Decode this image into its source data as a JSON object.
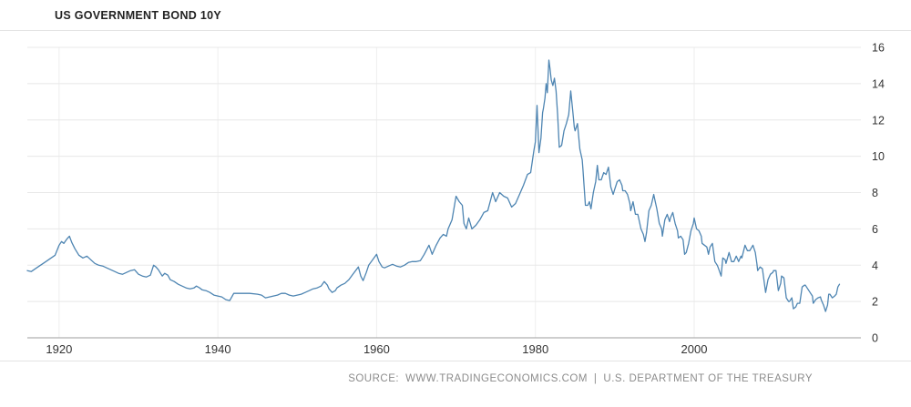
{
  "source": {
    "label": "SOURCE:",
    "site": "WWW.TRADINGECONOMICS.COM",
    "separator": "|",
    "provider": "U.S. DEPARTMENT OF THE TREASURY"
  },
  "chart_data": {
    "type": "line",
    "title": "US GOVERNMENT BOND 10Y",
    "xlabel": "",
    "ylabel": "",
    "xlim": [
      1916,
      2021
    ],
    "ylim": [
      0,
      16
    ],
    "xticks": [
      1920,
      1940,
      1960,
      1980,
      2000
    ],
    "yticks": [
      0,
      2,
      4,
      6,
      8,
      10,
      12,
      14,
      16
    ],
    "grid": true,
    "legend": false,
    "line_color": "#4e85b2",
    "axis_color": "#9e9e9e",
    "grid_color": "#e8e8e8",
    "points": [
      [
        1916.0,
        3.7
      ],
      [
        1916.5,
        3.65
      ],
      [
        1917.0,
        3.8
      ],
      [
        1917.5,
        3.95
      ],
      [
        1918.0,
        4.1
      ],
      [
        1918.5,
        4.25
      ],
      [
        1919.0,
        4.4
      ],
      [
        1919.5,
        4.55
      ],
      [
        1920.0,
        5.1
      ],
      [
        1920.3,
        5.3
      ],
      [
        1920.6,
        5.2
      ],
      [
        1921.0,
        5.45
      ],
      [
        1921.3,
        5.6
      ],
      [
        1921.6,
        5.25
      ],
      [
        1922.0,
        4.9
      ],
      [
        1922.5,
        4.55
      ],
      [
        1923.0,
        4.4
      ],
      [
        1923.5,
        4.5
      ],
      [
        1924.0,
        4.3
      ],
      [
        1924.5,
        4.1
      ],
      [
        1925.0,
        4.0
      ],
      [
        1925.5,
        3.95
      ],
      [
        1926.0,
        3.85
      ],
      [
        1926.5,
        3.75
      ],
      [
        1927.0,
        3.65
      ],
      [
        1927.5,
        3.55
      ],
      [
        1928.0,
        3.5
      ],
      [
        1928.5,
        3.6
      ],
      [
        1929.0,
        3.7
      ],
      [
        1929.5,
        3.75
      ],
      [
        1930.0,
        3.5
      ],
      [
        1930.5,
        3.4
      ],
      [
        1931.0,
        3.35
      ],
      [
        1931.5,
        3.45
      ],
      [
        1931.9,
        4.0
      ],
      [
        1932.2,
        3.9
      ],
      [
        1932.5,
        3.75
      ],
      [
        1933.0,
        3.4
      ],
      [
        1933.3,
        3.55
      ],
      [
        1933.7,
        3.45
      ],
      [
        1934.0,
        3.2
      ],
      [
        1934.5,
        3.1
      ],
      [
        1935.0,
        2.95
      ],
      [
        1935.5,
        2.85
      ],
      [
        1936.0,
        2.75
      ],
      [
        1936.5,
        2.7
      ],
      [
        1937.0,
        2.75
      ],
      [
        1937.3,
        2.85
      ],
      [
        1937.7,
        2.75
      ],
      [
        1938.0,
        2.65
      ],
      [
        1938.5,
        2.6
      ],
      [
        1939.0,
        2.5
      ],
      [
        1939.5,
        2.35
      ],
      [
        1940.0,
        2.3
      ],
      [
        1940.5,
        2.25
      ],
      [
        1941.0,
        2.1
      ],
      [
        1941.5,
        2.05
      ],
      [
        1942.0,
        2.45
      ],
      [
        1943.0,
        2.45
      ],
      [
        1944.0,
        2.45
      ],
      [
        1945.0,
        2.4
      ],
      [
        1945.5,
        2.35
      ],
      [
        1946.0,
        2.2
      ],
      [
        1946.5,
        2.25
      ],
      [
        1947.0,
        2.3
      ],
      [
        1947.5,
        2.35
      ],
      [
        1948.0,
        2.45
      ],
      [
        1948.5,
        2.45
      ],
      [
        1949.0,
        2.35
      ],
      [
        1949.5,
        2.3
      ],
      [
        1950.0,
        2.35
      ],
      [
        1950.5,
        2.4
      ],
      [
        1951.0,
        2.5
      ],
      [
        1951.5,
        2.6
      ],
      [
        1952.0,
        2.7
      ],
      [
        1952.5,
        2.75
      ],
      [
        1953.0,
        2.85
      ],
      [
        1953.4,
        3.1
      ],
      [
        1953.8,
        2.9
      ],
      [
        1954.0,
        2.7
      ],
      [
        1954.4,
        2.5
      ],
      [
        1954.8,
        2.6
      ],
      [
        1955.0,
        2.75
      ],
      [
        1955.5,
        2.9
      ],
      [
        1956.0,
        3.0
      ],
      [
        1956.5,
        3.2
      ],
      [
        1957.0,
        3.5
      ],
      [
        1957.7,
        3.9
      ],
      [
        1958.0,
        3.4
      ],
      [
        1958.3,
        3.15
      ],
      [
        1958.7,
        3.6
      ],
      [
        1959.0,
        4.0
      ],
      [
        1959.5,
        4.3
      ],
      [
        1960.0,
        4.6
      ],
      [
        1960.3,
        4.2
      ],
      [
        1960.7,
        3.9
      ],
      [
        1961.0,
        3.85
      ],
      [
        1961.5,
        3.95
      ],
      [
        1962.0,
        4.05
      ],
      [
        1962.5,
        3.95
      ],
      [
        1963.0,
        3.9
      ],
      [
        1963.5,
        4.0
      ],
      [
        1964.0,
        4.15
      ],
      [
        1964.5,
        4.2
      ],
      [
        1965.0,
        4.2
      ],
      [
        1965.5,
        4.25
      ],
      [
        1966.0,
        4.6
      ],
      [
        1966.6,
        5.1
      ],
      [
        1967.0,
        4.6
      ],
      [
        1967.5,
        5.1
      ],
      [
        1968.0,
        5.5
      ],
      [
        1968.4,
        5.7
      ],
      [
        1968.8,
        5.6
      ],
      [
        1969.0,
        6.0
      ],
      [
        1969.5,
        6.5
      ],
      [
        1970.0,
        7.8
      ],
      [
        1970.4,
        7.5
      ],
      [
        1970.8,
        7.3
      ],
      [
        1971.0,
        6.3
      ],
      [
        1971.3,
        6.0
      ],
      [
        1971.6,
        6.6
      ],
      [
        1972.0,
        6.0
      ],
      [
        1972.5,
        6.2
      ],
      [
        1973.0,
        6.5
      ],
      [
        1973.5,
        6.9
      ],
      [
        1974.0,
        7.0
      ],
      [
        1974.6,
        8.0
      ],
      [
        1975.0,
        7.5
      ],
      [
        1975.5,
        8.0
      ],
      [
        1976.0,
        7.8
      ],
      [
        1976.5,
        7.7
      ],
      [
        1977.0,
        7.2
      ],
      [
        1977.5,
        7.4
      ],
      [
        1978.0,
        7.9
      ],
      [
        1978.5,
        8.4
      ],
      [
        1979.0,
        9.0
      ],
      [
        1979.4,
        9.1
      ],
      [
        1979.8,
        10.3
      ],
      [
        1980.0,
        10.8
      ],
      [
        1980.2,
        12.8
      ],
      [
        1980.45,
        10.2
      ],
      [
        1980.7,
        11.0
      ],
      [
        1980.9,
        12.4
      ],
      [
        1981.0,
        12.6
      ],
      [
        1981.2,
        13.2
      ],
      [
        1981.35,
        14.0
      ],
      [
        1981.5,
        13.5
      ],
      [
        1981.7,
        15.3
      ],
      [
        1981.85,
        14.8
      ],
      [
        1982.0,
        14.2
      ],
      [
        1982.2,
        13.9
      ],
      [
        1982.4,
        14.3
      ],
      [
        1982.6,
        13.6
      ],
      [
        1982.8,
        12.3
      ],
      [
        1983.0,
        10.5
      ],
      [
        1983.3,
        10.6
      ],
      [
        1983.6,
        11.4
      ],
      [
        1983.9,
        11.8
      ],
      [
        1984.2,
        12.3
      ],
      [
        1984.45,
        13.6
      ],
      [
        1984.7,
        12.5
      ],
      [
        1984.9,
        11.6
      ],
      [
        1985.0,
        11.4
      ],
      [
        1985.3,
        11.8
      ],
      [
        1985.6,
        10.4
      ],
      [
        1985.9,
        9.8
      ],
      [
        1986.0,
        9.2
      ],
      [
        1986.3,
        7.3
      ],
      [
        1986.6,
        7.3
      ],
      [
        1986.8,
        7.5
      ],
      [
        1987.0,
        7.1
      ],
      [
        1987.3,
        8.0
      ],
      [
        1987.6,
        8.6
      ],
      [
        1987.8,
        9.5
      ],
      [
        1988.0,
        8.7
      ],
      [
        1988.3,
        8.7
      ],
      [
        1988.6,
        9.1
      ],
      [
        1988.9,
        9.0
      ],
      [
        1989.2,
        9.4
      ],
      [
        1989.5,
        8.3
      ],
      [
        1989.8,
        7.9
      ],
      [
        1990.0,
        8.2
      ],
      [
        1990.3,
        8.6
      ],
      [
        1990.6,
        8.7
      ],
      [
        1990.9,
        8.4
      ],
      [
        1991.0,
        8.1
      ],
      [
        1991.3,
        8.1
      ],
      [
        1991.6,
        7.9
      ],
      [
        1991.9,
        7.4
      ],
      [
        1992.0,
        7.0
      ],
      [
        1992.3,
        7.5
      ],
      [
        1992.6,
        6.8
      ],
      [
        1992.9,
        6.8
      ],
      [
        1993.0,
        6.6
      ],
      [
        1993.3,
        6.0
      ],
      [
        1993.6,
        5.7
      ],
      [
        1993.8,
        5.3
      ],
      [
        1994.0,
        5.8
      ],
      [
        1994.3,
        7.0
      ],
      [
        1994.6,
        7.3
      ],
      [
        1994.9,
        7.9
      ],
      [
        1995.0,
        7.7
      ],
      [
        1995.3,
        7.1
      ],
      [
        1995.6,
        6.3
      ],
      [
        1995.9,
        6.0
      ],
      [
        1996.0,
        5.6
      ],
      [
        1996.3,
        6.5
      ],
      [
        1996.6,
        6.8
      ],
      [
        1996.9,
        6.4
      ],
      [
        1997.0,
        6.6
      ],
      [
        1997.3,
        6.9
      ],
      [
        1997.6,
        6.3
      ],
      [
        1997.9,
        5.9
      ],
      [
        1998.0,
        5.5
      ],
      [
        1998.3,
        5.6
      ],
      [
        1998.6,
        5.4
      ],
      [
        1998.8,
        4.6
      ],
      [
        1999.0,
        4.7
      ],
      [
        1999.3,
        5.2
      ],
      [
        1999.6,
        5.9
      ],
      [
        1999.9,
        6.3
      ],
      [
        2000.0,
        6.6
      ],
      [
        2000.3,
        6.0
      ],
      [
        2000.6,
        5.9
      ],
      [
        2000.9,
        5.6
      ],
      [
        2001.0,
        5.2
      ],
      [
        2001.3,
        5.1
      ],
      [
        2001.6,
        5.0
      ],
      [
        2001.8,
        4.6
      ],
      [
        2002.0,
        5.0
      ],
      [
        2002.3,
        5.2
      ],
      [
        2002.6,
        4.2
      ],
      [
        2002.9,
        4.0
      ],
      [
        2003.0,
        3.9
      ],
      [
        2003.4,
        3.4
      ],
      [
        2003.6,
        4.4
      ],
      [
        2003.9,
        4.3
      ],
      [
        2004.0,
        4.1
      ],
      [
        2004.4,
        4.7
      ],
      [
        2004.7,
        4.2
      ],
      [
        2005.0,
        4.2
      ],
      [
        2005.3,
        4.5
      ],
      [
        2005.6,
        4.2
      ],
      [
        2005.9,
        4.5
      ],
      [
        2006.0,
        4.4
      ],
      [
        2006.4,
        5.1
      ],
      [
        2006.7,
        4.8
      ],
      [
        2007.0,
        4.8
      ],
      [
        2007.4,
        5.1
      ],
      [
        2007.7,
        4.7
      ],
      [
        2007.9,
        4.1
      ],
      [
        2008.0,
        3.7
      ],
      [
        2008.3,
        3.9
      ],
      [
        2008.6,
        3.8
      ],
      [
        2008.9,
        2.8
      ],
      [
        2009.0,
        2.5
      ],
      [
        2009.3,
        3.2
      ],
      [
        2009.6,
        3.5
      ],
      [
        2009.9,
        3.6
      ],
      [
        2010.0,
        3.7
      ],
      [
        2010.3,
        3.7
      ],
      [
        2010.6,
        2.6
      ],
      [
        2010.9,
        3.0
      ],
      [
        2011.0,
        3.4
      ],
      [
        2011.3,
        3.3
      ],
      [
        2011.6,
        2.2
      ],
      [
        2011.9,
        2.0
      ],
      [
        2012.0,
        2.0
      ],
      [
        2012.3,
        2.2
      ],
      [
        2012.5,
        1.6
      ],
      [
        2012.8,
        1.7
      ],
      [
        2013.0,
        1.9
      ],
      [
        2013.3,
        1.9
      ],
      [
        2013.6,
        2.8
      ],
      [
        2013.9,
        2.9
      ],
      [
        2014.0,
        2.9
      ],
      [
        2014.3,
        2.7
      ],
      [
        2014.6,
        2.5
      ],
      [
        2014.9,
        2.3
      ],
      [
        2015.0,
        1.9
      ],
      [
        2015.3,
        2.1
      ],
      [
        2015.6,
        2.2
      ],
      [
        2015.9,
        2.25
      ],
      [
        2016.0,
        2.1
      ],
      [
        2016.3,
        1.8
      ],
      [
        2016.55,
        1.45
      ],
      [
        2016.8,
        1.8
      ],
      [
        2016.95,
        2.4
      ],
      [
        2017.1,
        2.4
      ],
      [
        2017.4,
        2.2
      ],
      [
        2017.7,
        2.3
      ],
      [
        2017.9,
        2.4
      ],
      [
        2018.1,
        2.8
      ],
      [
        2018.3,
        2.95
      ]
    ]
  }
}
